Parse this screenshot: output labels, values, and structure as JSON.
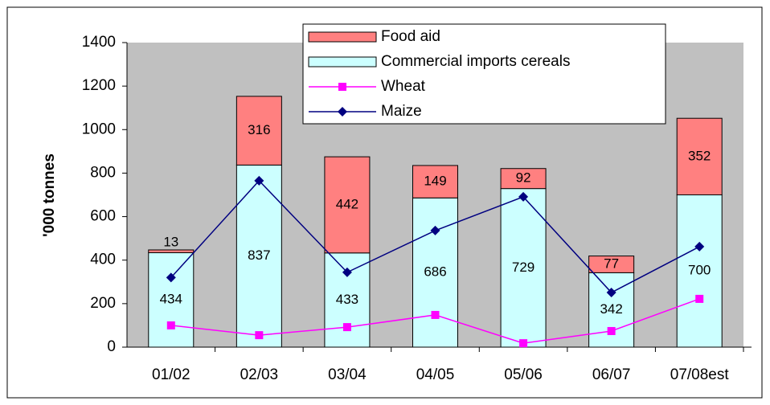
{
  "chart_data": {
    "type": "bar",
    "stacked": true,
    "y_label": "'000 tonnes",
    "categories": [
      "01/02",
      "02/03",
      "03/04",
      "04/05",
      "05/06",
      "06/07",
      "07/08est"
    ],
    "series": [
      {
        "name": "Food aid",
        "type": "bar",
        "color": "#ff8080",
        "values": [
          13,
          316,
          442,
          149,
          92,
          77,
          352
        ]
      },
      {
        "name": "Commercial imports cereals",
        "type": "bar",
        "color": "#ccffff",
        "values": [
          434,
          837,
          433,
          686,
          729,
          342,
          700
        ]
      },
      {
        "name": "Wheat",
        "type": "line",
        "color": "#ff00ff",
        "marker": "square",
        "values": [
          100,
          55,
          92,
          148,
          18,
          74,
          222
        ]
      },
      {
        "name": "Maize",
        "type": "line",
        "color": "#000080",
        "marker": "diamond",
        "values": [
          320,
          765,
          344,
          536,
          691,
          251,
          462
        ]
      }
    ],
    "ylim": [
      0,
      1400
    ],
    "yticks": [
      0,
      200,
      400,
      600,
      800,
      1000,
      1200,
      1400
    ],
    "legend": "top",
    "background": "#c0c0c0"
  }
}
